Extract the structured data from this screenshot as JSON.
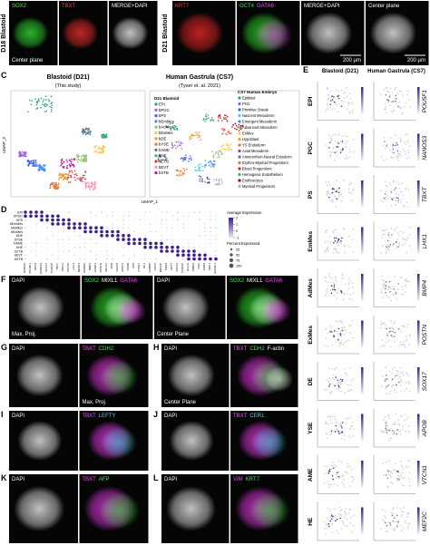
{
  "microscopy": [
    {
      "letter": "A",
      "side_label": "D18 Blastoid",
      "images": [
        {
          "labels": [
            {
              "text": "SOX2",
              "color": "#33ee33"
            }
          ],
          "caption": "Center plane"
        },
        {
          "labels": [
            {
              "text": "TBXT",
              "color": "#ff3030"
            }
          ]
        },
        {
          "labels": [
            {
              "text": "MERGE+DAPI",
              "color": "#ffffff"
            }
          ]
        }
      ]
    },
    {
      "letter": "B",
      "side_label": "D21 Blastoid",
      "images": [
        {
          "labels": [
            {
              "text": "KRT7",
              "color": "#ff2a2a"
            }
          ]
        },
        {
          "labels": [
            {
              "text": "OCT4",
              "color": "#33ee33"
            },
            {
              "text": "GATA6",
              "color": "#ff40ff"
            }
          ]
        },
        {
          "labels": [
            {
              "text": "MERGE+DAPI",
              "color": "#ffffff"
            }
          ],
          "scale": "200 µm"
        },
        {
          "labels": [
            {
              "text": "Center plane",
              "color": "#ffffff"
            }
          ],
          "scale": "200 µm"
        }
      ]
    },
    {
      "letter": "F",
      "images": [
        {
          "labels": [
            {
              "text": "DAPI",
              "color": "#ffffff"
            }
          ],
          "caption": "Max. Proj."
        },
        {
          "labels": [
            {
              "text": "SOX2",
              "color": "#33ee33"
            },
            {
              "text": "MIXL1",
              "color": "#ffffff"
            },
            {
              "text": "GATA6",
              "color": "#ff40ff"
            }
          ]
        },
        {
          "labels": [
            {
              "text": "DAPI",
              "color": "#ffffff"
            }
          ],
          "caption": "Center Plane"
        },
        {
          "labels": [
            {
              "text": "SOX2",
              "color": "#33ee33"
            },
            {
              "text": "MIXL1",
              "color": "#ffffff"
            },
            {
              "text": "GATA6",
              "color": "#ff40ff"
            }
          ]
        }
      ]
    },
    {
      "letter": "G",
      "images": [
        {
          "labels": [
            {
              "text": "DAPI",
              "color": "#ffffff"
            }
          ]
        },
        {
          "labels": [
            {
              "text": "TBXT",
              "color": "#ff40ff"
            },
            {
              "text": "CDH2",
              "color": "#33ee33"
            }
          ],
          "caption": "Max. Proj."
        }
      ]
    },
    {
      "letter": "H",
      "images": [
        {
          "labels": [
            {
              "text": "DAPI",
              "color": "#ffffff"
            }
          ],
          "caption": "Center Plane"
        },
        {
          "labels": [
            {
              "text": "TBXT",
              "color": "#ff40ff"
            },
            {
              "text": "CDH2",
              "color": "#33ee33"
            },
            {
              "text": "F-actin",
              "color": "#ffffff"
            }
          ]
        }
      ]
    },
    {
      "letter": "I",
      "images": [
        {
          "labels": [
            {
              "text": "DAPI",
              "color": "#ffffff"
            }
          ]
        },
        {
          "labels": [
            {
              "text": "TBXT",
              "color": "#ff40ff"
            },
            {
              "text": "LEFTY",
              "color": "#33dddd"
            }
          ]
        }
      ]
    },
    {
      "letter": "J",
      "images": [
        {
          "labels": [
            {
              "text": "DAPI",
              "color": "#ffffff"
            }
          ]
        },
        {
          "labels": [
            {
              "text": "TBXT",
              "color": "#ff40ff"
            },
            {
              "text": "CER1",
              "color": "#33dddd"
            }
          ]
        }
      ]
    },
    {
      "letter": "K",
      "images": [
        {
          "labels": [
            {
              "text": "DAPI",
              "color": "#ffffff"
            }
          ]
        },
        {
          "labels": [
            {
              "text": "TBXT",
              "color": "#ff40ff"
            },
            {
              "text": "AFP",
              "color": "#33ee33"
            }
          ]
        }
      ]
    },
    {
      "letter": "L",
      "images": [
        {
          "labels": [
            {
              "text": "DAPI",
              "color": "#ffffff"
            }
          ]
        },
        {
          "labels": [
            {
              "text": "VIM",
              "color": "#ff40ff"
            },
            {
              "text": "KRT7",
              "color": "#33ee33"
            }
          ]
        }
      ]
    }
  ],
  "panel_c": {
    "letter": "C",
    "blastoid_title": "Blastoid (D21)",
    "blastoid_note": "(This study)",
    "gastrula_title": "Human Gastrula (CS7)",
    "gastrula_note": "(Tyser et. al. 2021)",
    "x_label": "UMAP_1",
    "y_label": "UMAP_2",
    "blastoid_legend_title": "D21 Blastoid",
    "blastoid_types": [
      {
        "name": "EPI",
        "color": "#2a9d8f"
      },
      {
        "name": "bPGC",
        "color": "#9b5de5"
      },
      {
        "name": "bPS",
        "color": "#4361ee"
      },
      {
        "name": "bEmMes",
        "color": "#3a86ff"
      },
      {
        "name": "bAdMes",
        "color": "#90be6d"
      },
      {
        "name": "bExMes",
        "color": "#f9c74f"
      },
      {
        "name": "bDE",
        "color": "#f8961e"
      },
      {
        "name": "bYSE",
        "color": "#f3722c"
      },
      {
        "name": "bAME",
        "color": "#577590"
      },
      {
        "name": "bHE",
        "color": "#43aa8b"
      },
      {
        "name": "bCTB",
        "color": "#e63946"
      },
      {
        "name": "bEVT",
        "color": "#ff8fab"
      },
      {
        "name": "bSTB",
        "color": "#b5179e"
      }
    ],
    "embryo_legend_title": "CS7 Human Embryo",
    "embryo_types": [
      {
        "name": "Epiblast",
        "color": "#2a9d8f"
      },
      {
        "name": "PGC",
        "color": "#9b5de5"
      },
      {
        "name": "Primitive Streak",
        "color": "#4361ee"
      },
      {
        "name": "Nascent Mesoderm",
        "color": "#4cc9f0"
      },
      {
        "name": "Emergent Mesoderm",
        "color": "#3a86ff"
      },
      {
        "name": "Advanced Mesoderm",
        "color": "#90be6d"
      },
      {
        "name": "ExMes",
        "color": "#f9c74f"
      },
      {
        "name": "Hypoblast",
        "color": "#f8961e"
      },
      {
        "name": "YS Endoderm",
        "color": "#f3722c"
      },
      {
        "name": "Axial Mesoderm",
        "color": "#6a4c93"
      },
      {
        "name": "Amnion/Non-Neural Ectoderm",
        "color": "#577590"
      },
      {
        "name": "Erythro-Myeloid Progenitors",
        "color": "#e76f51"
      },
      {
        "name": "Blood Progenitors",
        "color": "#d62828"
      },
      {
        "name": "Hemogenic Endothelium",
        "color": "#43aa8b"
      },
      {
        "name": "Erythrocytes",
        "color": "#9d0208"
      },
      {
        "name": "Myeloid Progenitors",
        "color": "#adb5bd"
      }
    ]
  },
  "panel_d": {
    "letter": "D",
    "rows": [
      "EPI",
      "bPGC",
      "bPS",
      "bEmMes",
      "bAdMes",
      "bExMes",
      "bDE",
      "bYSE",
      "bAME",
      "bHE",
      "bCTB",
      "bEVT",
      "bSTB"
    ],
    "genes": [
      "NANOG",
      "POU5F1",
      "SOX2",
      "NANOS3",
      "SOX17",
      "TFAP2C",
      "TBXT",
      "MIXL1",
      "FOXA2",
      "LHX1",
      "MESP1",
      "EOMES",
      "BMP4",
      "HAND1",
      "POSTN",
      "ANXA1",
      "KDR",
      "GATA6",
      "APOA1",
      "APOB",
      "AFP",
      "VTCN1",
      "ISL1",
      "GABRP",
      "CDX2",
      "MEF2C",
      "CDH5",
      "KRT7",
      "GATA3",
      "TFAP2A",
      "HLA-G",
      "MMP2",
      "CGA",
      "CGB3",
      "SDC1",
      "ERVW-1"
    ],
    "avg_title": "Average Expression",
    "avg_ticks": [
      2,
      1,
      0,
      -1
    ],
    "pct_title": "Percent Expressed",
    "pct_ticks": [
      25,
      50,
      75,
      100
    ]
  },
  "panel_e": {
    "letter": "E",
    "col_titles": [
      "Blastoid (D21)",
      "Human Gastrula (CS7)"
    ],
    "rows": [
      {
        "type": "EPI",
        "gene": "POU5F1"
      },
      {
        "type": "PGC",
        "gene": "NANOS3"
      },
      {
        "type": "PS",
        "gene": "TBXT"
      },
      {
        "type": "EmMes",
        "gene": "LHX1"
      },
      {
        "type": "AdMes",
        "gene": "BMP4"
      },
      {
        "type": "ExMes",
        "gene": "POSTN"
      },
      {
        "type": "DE",
        "gene": "SOX17"
      },
      {
        "type": "YSE",
        "gene": "APOB"
      },
      {
        "type": "AME",
        "gene": "VTCN1"
      },
      {
        "type": "HE",
        "gene": "MEF2C"
      }
    ]
  }
}
